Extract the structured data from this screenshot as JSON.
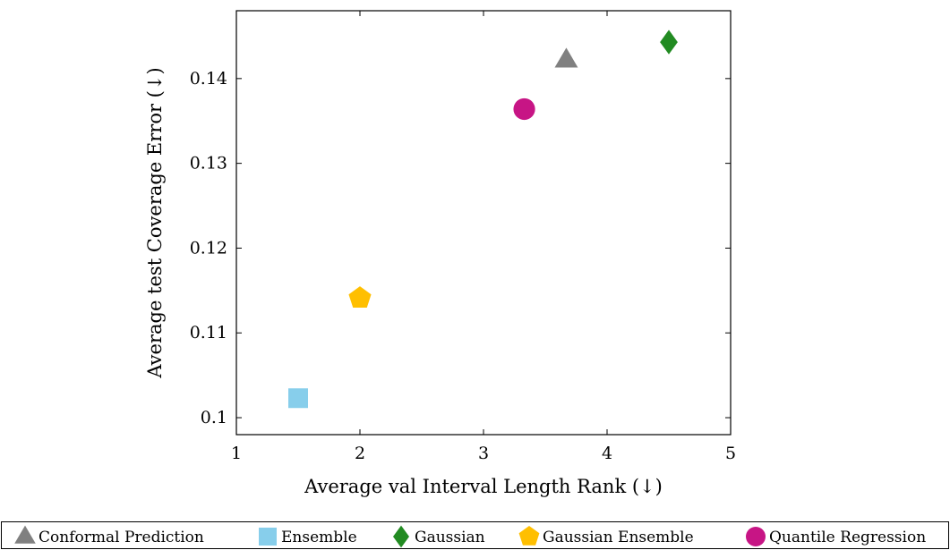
{
  "chart_data": {
    "type": "scatter",
    "xlabel": "Average val Interval Length Rank (↓)",
    "ylabel": "Average test Coverage Error (↓)",
    "xlim": [
      1,
      5
    ],
    "ylim": [
      0.098,
      0.148
    ],
    "xticks": [
      1,
      2,
      3,
      4,
      5
    ],
    "yticks": [
      0.1,
      0.11,
      0.12,
      0.13,
      0.14
    ],
    "xtick_labels": [
      "1",
      "2",
      "3",
      "4",
      "5"
    ],
    "ytick_labels": [
      "0.1",
      "0.11",
      "0.12",
      "0.13",
      "0.14"
    ],
    "grid": false,
    "legend_position": "bottom",
    "series": [
      {
        "name": "Conformal Prediction",
        "marker": "triangle",
        "color": "#808080",
        "x": [
          3.67
        ],
        "y": [
          0.1422
        ]
      },
      {
        "name": "Ensemble",
        "marker": "square",
        "color": "#87CEEB",
        "x": [
          1.5
        ],
        "y": [
          0.1023
        ]
      },
      {
        "name": "Gaussian",
        "marker": "diamond",
        "color": "#228B22",
        "x": [
          4.5
        ],
        "y": [
          0.1443
        ]
      },
      {
        "name": "Gaussian Ensemble",
        "marker": "pentagon",
        "color": "#FFBF00",
        "x": [
          2.0
        ],
        "y": [
          0.1141
        ]
      },
      {
        "name": "Quantile Regression",
        "marker": "circle",
        "color": "#C71585",
        "x": [
          3.33
        ],
        "y": [
          0.1364
        ]
      }
    ]
  }
}
